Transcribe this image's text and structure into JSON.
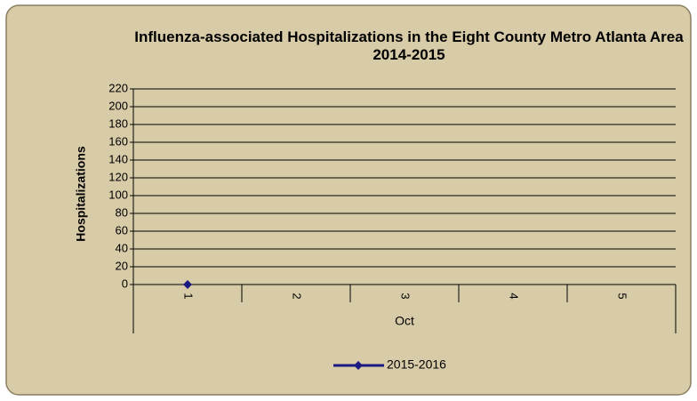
{
  "chart_data": {
    "type": "line",
    "title": "Influenza-associated Hospitalizations in the Eight County Metro Atlanta Area 2014-2015",
    "y_axis_label": "Hospitalizations",
    "x_axis_label": "Oct",
    "categories": [
      "1",
      "2",
      "3",
      "4",
      "5"
    ],
    "series": [
      {
        "name": "2015-2016",
        "color": "#1a1a80",
        "values": [
          0,
          null,
          null,
          null,
          null
        ]
      }
    ],
    "ylim": [
      0,
      220
    ],
    "yticks": [
      0,
      20,
      40,
      60,
      80,
      100,
      120,
      140,
      160,
      180,
      200,
      220
    ],
    "grid": true,
    "legend": "bottom"
  }
}
